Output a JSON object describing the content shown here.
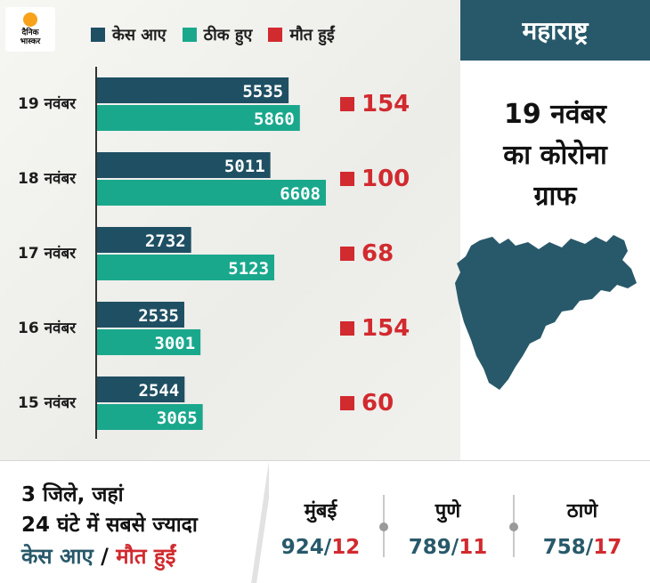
{
  "brand": {
    "logo_line1": "दैनिक",
    "logo_line2": "भास्कर"
  },
  "legend": [
    {
      "label": "केस आए",
      "color": "#1f4f63"
    },
    {
      "label": "ठीक हुए",
      "color": "#1aa88d"
    },
    {
      "label": "मौत हुईं",
      "color": "#d12a2f"
    }
  ],
  "title_tab": "महाराष्ट्र",
  "headline": {
    "line1": "19 नवंबर",
    "line2": "का कोरोना",
    "line3": "ग्राफ"
  },
  "chart_data": {
    "type": "bar",
    "orientation": "horizontal",
    "categories": [
      "19 नवंबर",
      "18 नवंबर",
      "17 नवंबर",
      "16 नवंबर",
      "15 नवंबर"
    ],
    "series": [
      {
        "name": "केस आए",
        "color": "#1f4f63",
        "values": [
          5535,
          5011,
          2732,
          2535,
          2544
        ]
      },
      {
        "name": "ठीक हुए",
        "color": "#1aa88d",
        "values": [
          5860,
          6608,
          5123,
          3001,
          3065
        ]
      },
      {
        "name": "मौत हुईं",
        "color": "#d12a2f",
        "values": [
          154,
          100,
          68,
          154,
          60
        ],
        "display": "label"
      }
    ]
  },
  "bottom": {
    "line1": "3 जिले, जहां",
    "line2": "24 घंटे में सबसे ज्यादा",
    "line3_cases": "केस आए",
    "line3_sep": " / ",
    "line3_deaths": "मौत हुईं",
    "cities": [
      {
        "name": "मुंबई",
        "cases": "924",
        "sep": "/",
        "deaths": "12"
      },
      {
        "name": "पुणे",
        "cases": "789",
        "sep": "/",
        "deaths": "11"
      },
      {
        "name": "ठाणे",
        "cases": "758",
        "sep": "/",
        "deaths": "17"
      }
    ]
  }
}
